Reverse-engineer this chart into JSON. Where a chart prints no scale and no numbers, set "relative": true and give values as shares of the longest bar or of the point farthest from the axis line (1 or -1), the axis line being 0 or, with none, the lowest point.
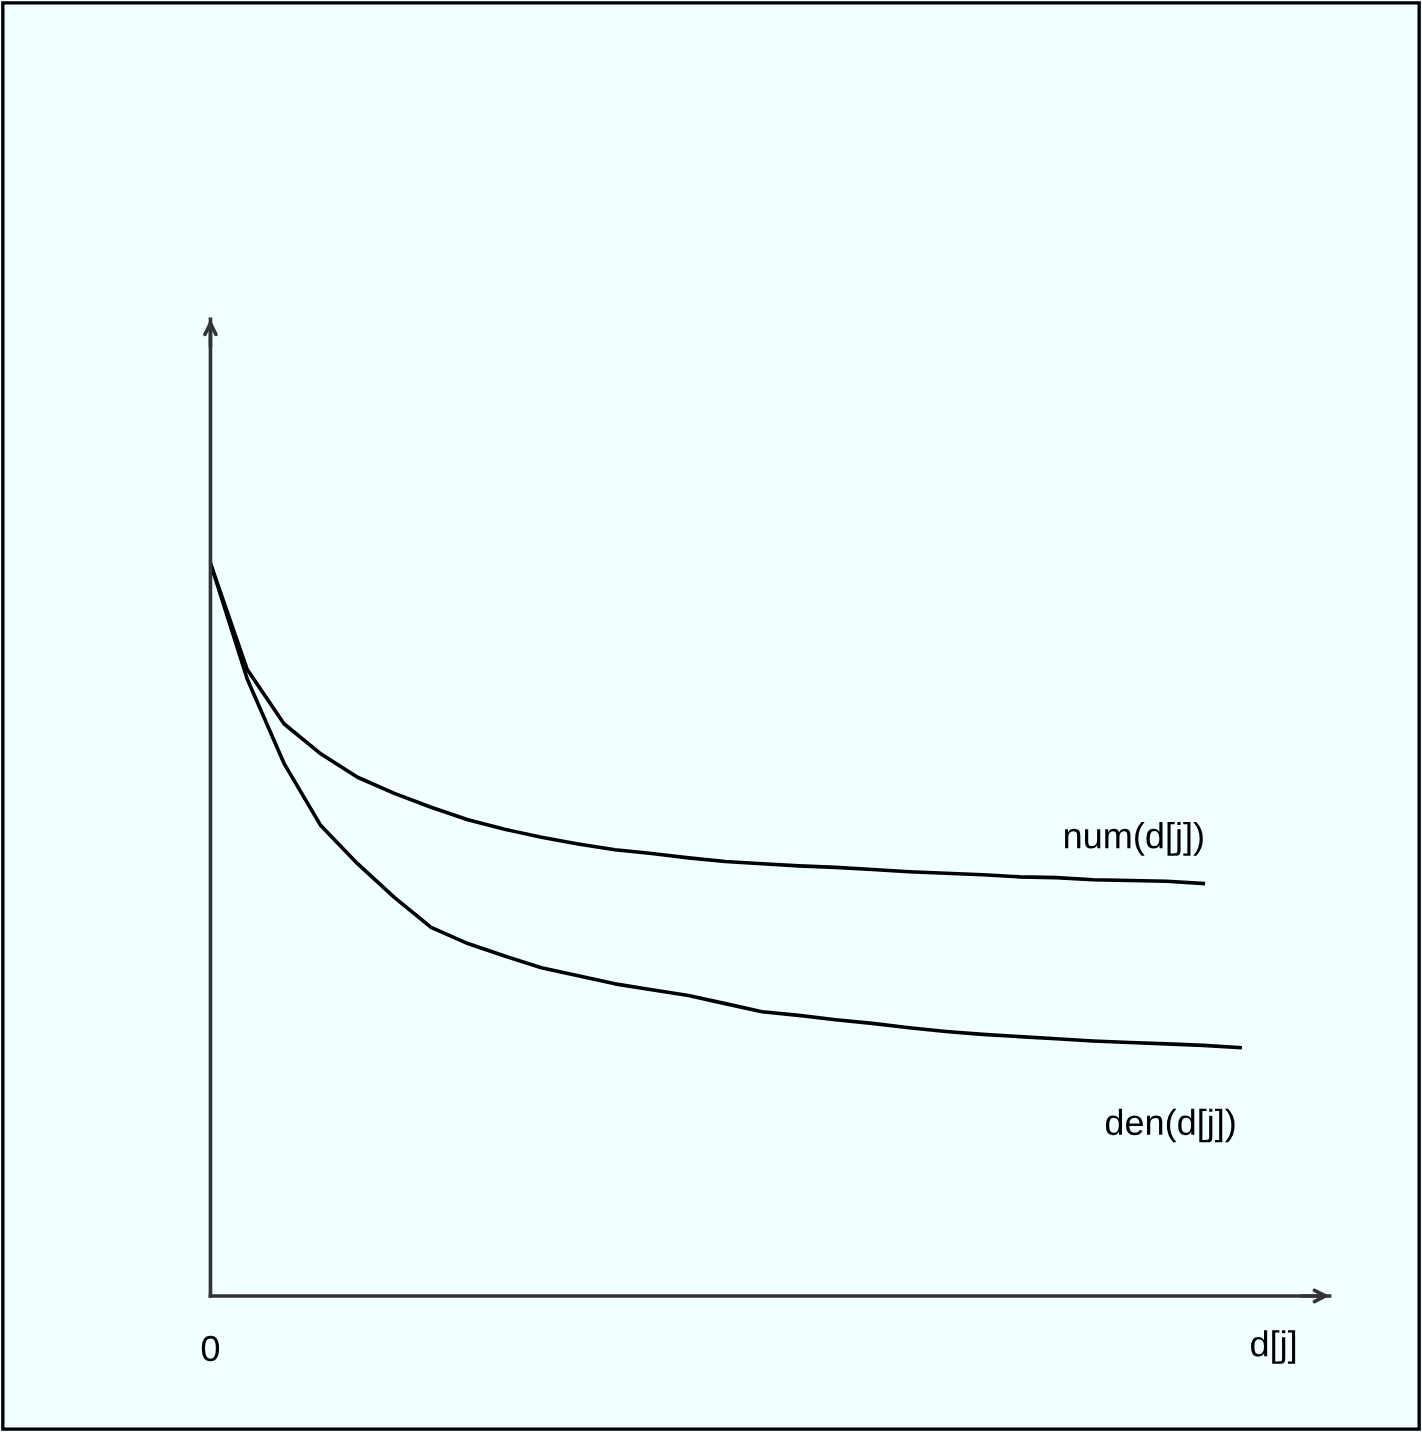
{
  "chart_data": {
    "type": "line",
    "relative": true,
    "xlabel": "d[j]",
    "annotations": [
      "0"
    ],
    "legend": false,
    "marker": "none",
    "line_style": "solid",
    "categories": [
      null,
      null,
      null,
      null,
      null,
      null,
      null,
      null,
      null,
      null,
      null,
      null,
      null,
      null,
      null,
      null,
      null,
      null,
      null,
      null,
      null,
      null,
      null,
      null,
      null,
      null,
      null,
      null,
      null
    ],
    "series": [
      {
        "name": "num(d[j])",
        "color": "#000000",
        "values": [
          1,
          0.855,
          0.781,
          0.74,
          0.708,
          0.686,
          0.667,
          0.65,
          0.637,
          0.626,
          0.617,
          0.609,
          0.604,
          0.598,
          0.593,
          0.59,
          0.587,
          0.585,
          0.582,
          0.579,
          0.577,
          0.575,
          0.572,
          0.571,
          0.568,
          0.567,
          0.566,
          0.563,
          null
        ]
      },
      {
        "name": "den(d[j])",
        "color": "#000000",
        "values": [
          1,
          0.842,
          0.727,
          0.642,
          0.59,
          0.544,
          0.503,
          0.481,
          0.464,
          0.448,
          0.437,
          0.426,
          0.418,
          0.41,
          0.399,
          0.388,
          0.383,
          0.377,
          0.372,
          0.366,
          0.361,
          0.357,
          0.354,
          0.351,
          0.348,
          0.346,
          0.344,
          0.342,
          0.339
        ]
      }
    ]
  }
}
